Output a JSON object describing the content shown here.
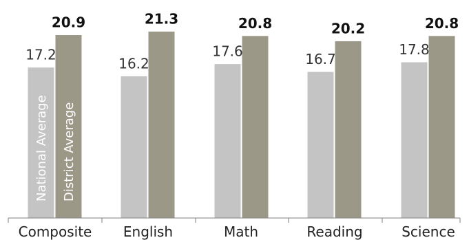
{
  "chart_data": {
    "type": "bar",
    "title": "",
    "xlabel": "",
    "ylabel": "",
    "ylim": [
      0,
      23
    ],
    "grid": false,
    "legend": "inside-first-bars",
    "categories": [
      "Composite",
      "English",
      "Math",
      "Reading",
      "Science"
    ],
    "series": [
      {
        "name": "National Average",
        "color": "#c4c4c4",
        "values": [
          17.2,
          16.2,
          17.6,
          16.7,
          17.8
        ]
      },
      {
        "name": "District Average",
        "color": "#9c9888",
        "values": [
          20.9,
          21.3,
          20.8,
          20.2,
          20.8
        ]
      }
    ],
    "data_labels": {
      "national": [
        "17.2",
        "16.2",
        "17.6",
        "16.7",
        "17.8"
      ],
      "district": [
        "20.9",
        "21.3",
        "20.8",
        "20.2",
        "20.8"
      ]
    }
  }
}
